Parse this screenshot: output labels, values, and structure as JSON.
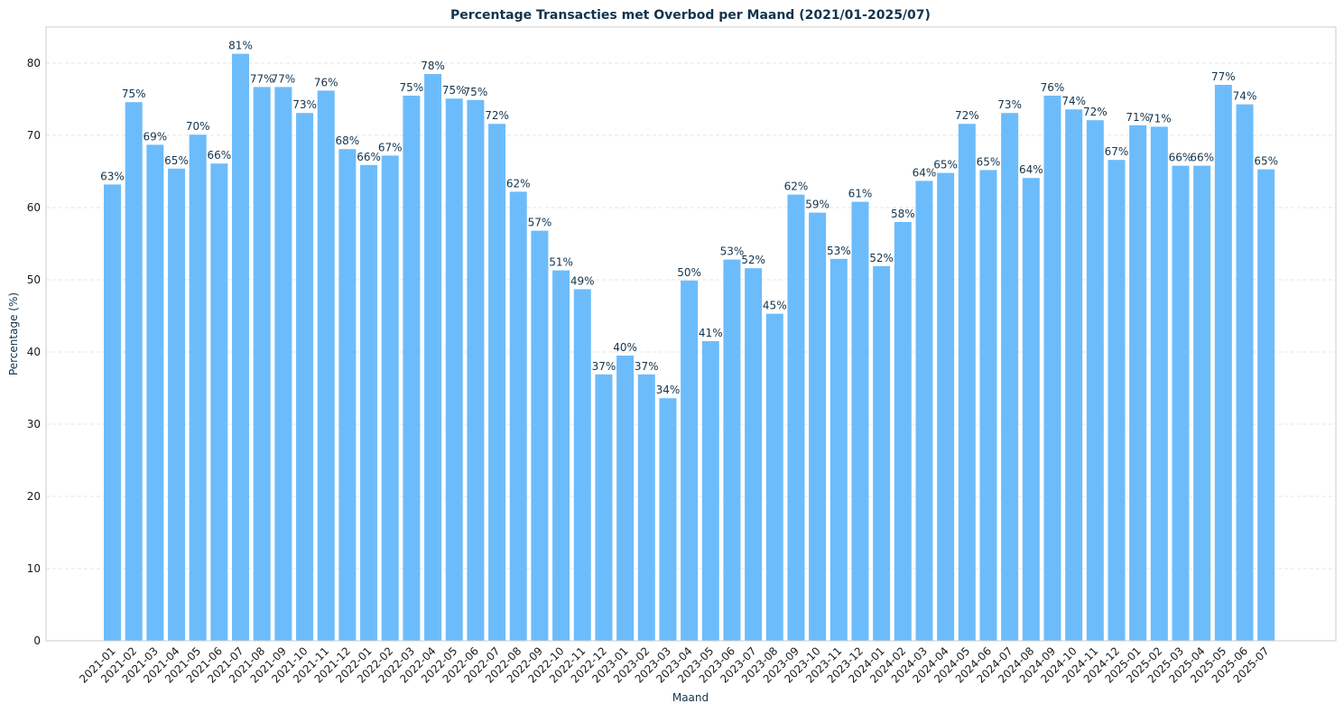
{
  "chart_data": {
    "type": "bar",
    "title": "Percentage Transacties met Overbod per Maand (2021/01-2025/07)",
    "xlabel": "Maand",
    "ylabel": "Percentage (%)",
    "ylim": [
      0,
      85
    ],
    "yticks": [
      0,
      10,
      20,
      30,
      40,
      50,
      60,
      70,
      80
    ],
    "grid": true,
    "bar_color": "#6cbcfc",
    "categories": [
      "2021-01",
      "2021-02",
      "2021-03",
      "2021-04",
      "2021-05",
      "2021-06",
      "2021-07",
      "2021-08",
      "2021-09",
      "2021-10",
      "2021-11",
      "2021-12",
      "2022-01",
      "2022-02",
      "2022-03",
      "2022-04",
      "2022-05",
      "2022-06",
      "2022-07",
      "2022-08",
      "2022-09",
      "2022-10",
      "2022-11",
      "2022-12",
      "2023-01",
      "2023-02",
      "2023-03",
      "2023-04",
      "2023-05",
      "2023-06",
      "2023-07",
      "2023-08",
      "2023-09",
      "2023-10",
      "2023-11",
      "2023-12",
      "2024-01",
      "2024-02",
      "2024-03",
      "2024-04",
      "2024-05",
      "2024-06",
      "2024-07",
      "2024-08",
      "2024-09",
      "2024-10",
      "2024-11",
      "2024-12",
      "2025-01",
      "2025-02",
      "2025-03",
      "2025-04",
      "2025-05",
      "2025-06",
      "2025-07"
    ],
    "values": [
      63.2,
      74.6,
      68.7,
      65.4,
      70.1,
      66.1,
      81.3,
      76.7,
      76.7,
      73.1,
      76.2,
      68.1,
      65.9,
      67.2,
      75.5,
      78.5,
      75.1,
      74.9,
      71.6,
      62.2,
      56.8,
      51.3,
      48.7,
      36.9,
      39.5,
      36.9,
      33.6,
      49.9,
      41.5,
      52.8,
      51.6,
      45.3,
      61.8,
      59.3,
      52.9,
      60.8,
      51.9,
      58.0,
      63.7,
      64.8,
      71.6,
      65.2,
      73.1,
      64.1,
      75.5,
      73.6,
      72.1,
      66.6,
      71.4,
      71.2,
      65.8,
      65.8,
      77.0,
      74.3,
      65.3
    ],
    "data_labels": [
      "63%",
      "75%",
      "69%",
      "65%",
      "70%",
      "66%",
      "81%",
      "77%",
      "77%",
      "73%",
      "76%",
      "68%",
      "66%",
      "67%",
      "75%",
      "78%",
      "75%",
      "75%",
      "72%",
      "62%",
      "57%",
      "51%",
      "49%",
      "37%",
      "40%",
      "37%",
      "34%",
      "50%",
      "41%",
      "53%",
      "52%",
      "45%",
      "62%",
      "59%",
      "53%",
      "61%",
      "52%",
      "58%",
      "64%",
      "65%",
      "72%",
      "65%",
      "73%",
      "64%",
      "76%",
      "74%",
      "72%",
      "67%",
      "71%",
      "71%",
      "66%",
      "66%",
      "77%",
      "74%",
      "65%"
    ]
  }
}
